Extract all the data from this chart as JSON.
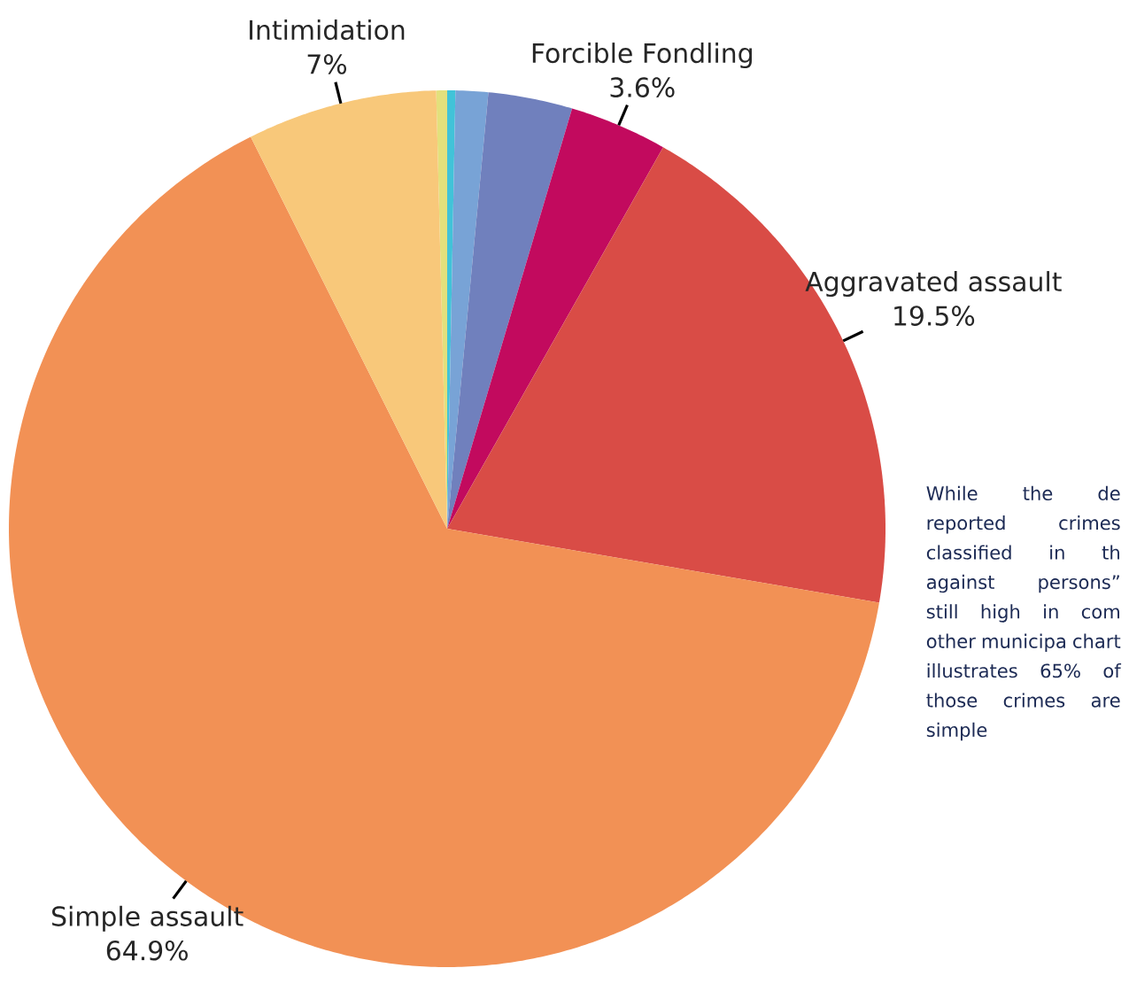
{
  "chart_data": {
    "type": "pie",
    "categories": [
      null,
      null,
      null,
      null,
      "Forcible Fondling",
      "Aggravated assault",
      "Simple assault",
      "Intimidation"
    ],
    "values": [
      0.4,
      0.3,
      1.2,
      3.1,
      3.6,
      19.5,
      64.9,
      7
    ],
    "value_labels": [
      null,
      null,
      null,
      null,
      "3.6%",
      "19.5%",
      "64.9%",
      "7%"
    ],
    "colors": [
      "#e3e07c",
      "#41c3d8",
      "#78a3d6",
      "#7080bd",
      "#c20a5e",
      "#d94c46",
      "#f29155",
      "#f8c87a"
    ],
    "annotations": [
      "While the de reported crimes classified in th against persons” still high in com other municipa chart illustrates 65% of those crimes are simple"
    ]
  }
}
